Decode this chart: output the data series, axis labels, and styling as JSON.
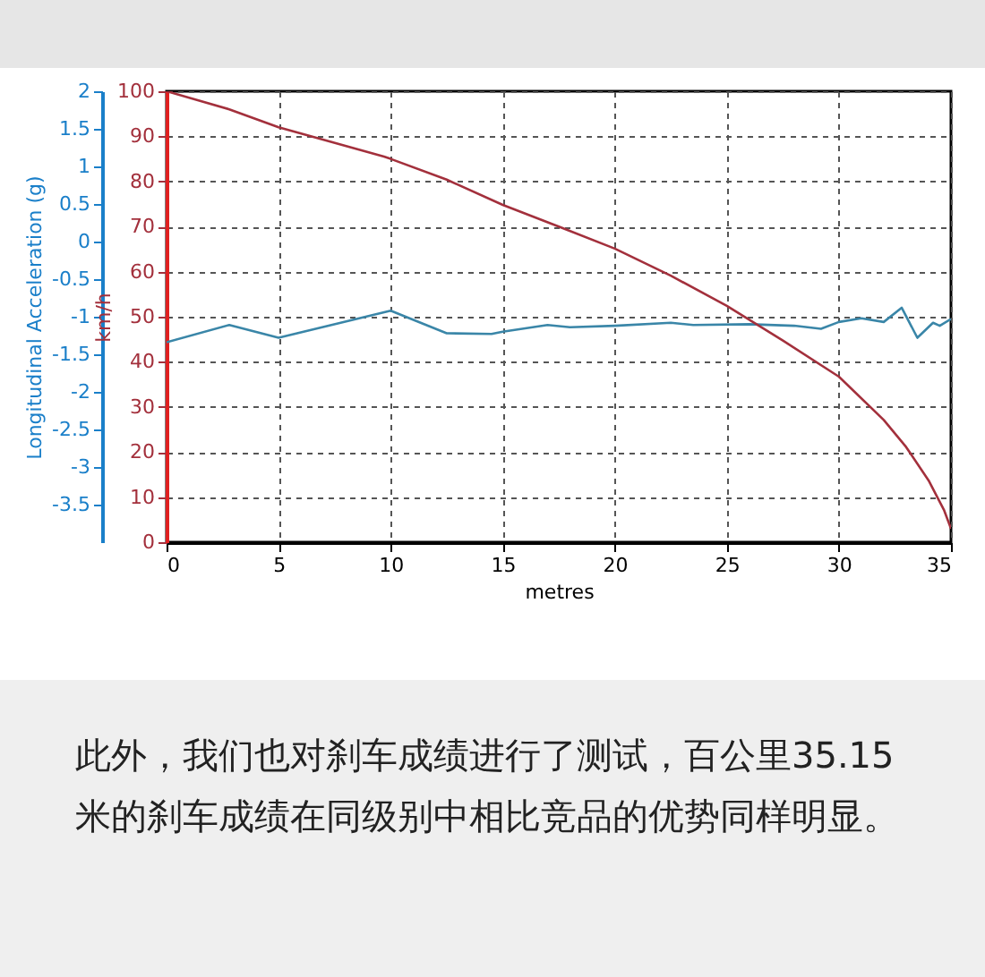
{
  "chart_data": {
    "type": "line",
    "xlabel": "metres",
    "ylabel": "Longitudinal Acceleration (g)",
    "y2label": "km/h",
    "xlim": [
      0,
      35
    ],
    "xticks": [
      0,
      5,
      10,
      15,
      20,
      25,
      30,
      35
    ],
    "ylim": [
      -4,
      2
    ],
    "yticks": [
      2,
      1.5,
      1,
      0.5,
      0,
      -0.5,
      -1,
      -1.5,
      -2,
      -2.5,
      -3,
      -3.5
    ],
    "y2lim": [
      0,
      100
    ],
    "y2ticks": [
      0,
      10,
      20,
      30,
      40,
      50,
      60,
      70,
      80,
      90,
      100
    ],
    "grid": true,
    "series": [
      {
        "color": "#3a86a8",
        "x": [
          0,
          2.8,
          5,
          10,
          12.5,
          14.5,
          15,
          17,
          18,
          20,
          22.5,
          23.5,
          26,
          28,
          29.2,
          30,
          31,
          32,
          32.8,
          33.5,
          34.2,
          34.5,
          35
        ],
        "values": [
          -1.34,
          -1.11,
          -1.28,
          -0.92,
          -1.22,
          -1.23,
          -1.2,
          -1.11,
          -1.14,
          -1.12,
          -1.08,
          -1.11,
          -1.1,
          -1.12,
          -1.16,
          -1.07,
          -1.02,
          -1.07,
          -0.88,
          -1.28,
          -1.08,
          -1.12,
          -1.03
        ]
      },
      {
        "color": "#a3303c",
        "axis": "y2",
        "x": [
          0,
          2.8,
          5,
          9.7,
          10,
          12.5,
          15,
          17.5,
          20,
          22.5,
          25,
          27.5,
          30,
          32,
          33,
          34,
          34.7,
          35
        ],
        "values": [
          100,
          96,
          92,
          85.5,
          85,
          80.4,
          74.8,
          70,
          65.1,
          59.1,
          52.4,
          44.7,
          36.7,
          27.1,
          21.1,
          13.7,
          7,
          3
        ]
      }
    ],
    "annotations": [
      "此外，我们也对刹车成绩进行了测试，百公里35.15米的刹车成绩在同级别中相比竞品的优势同样明显。"
    ]
  }
}
